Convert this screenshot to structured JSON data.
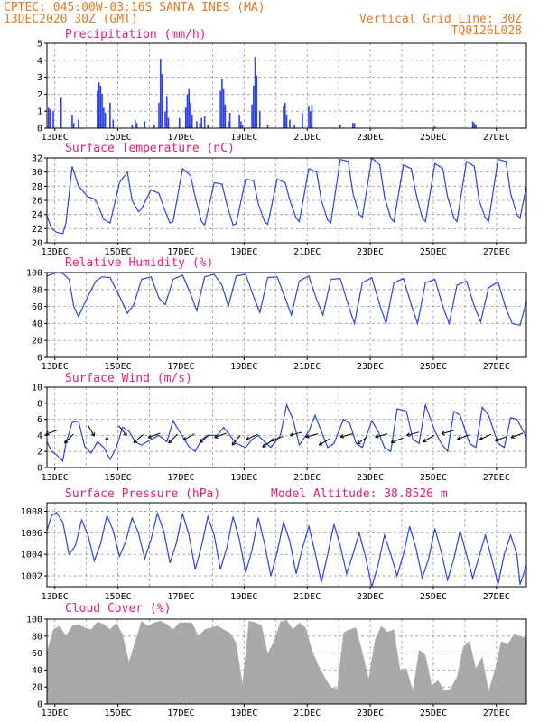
{
  "header": {
    "line1": "CPTEC:   045:00W-03:16S   SANTA INES (MA)",
    "line2": "13DEC2020 30Z (GMT)",
    "right1": "Vertical Grid Line: 30Z",
    "right2": "TQ0126L028"
  },
  "x_ticks": [
    "13DEC",
    "15DEC",
    "17DEC",
    "19DEC",
    "21DEC",
    "23DEC",
    "25DEC",
    "27DEC"
  ],
  "colors": {
    "series": "#2c42e0",
    "header": "#e8781e",
    "title": "#e0207a",
    "cloud": "#a9a9a9"
  },
  "panels": [
    {
      "id": "precip",
      "title": "Precipitation (mm/h)",
      "chart_data": {
        "type": "bar",
        "ylim": [
          0,
          5
        ],
        "yticks": [
          0,
          1,
          2,
          3,
          4,
          5
        ],
        "grid": true,
        "x_start_day": 13,
        "x_end_day": 28.2,
        "x_day": [
          13.05,
          13.1,
          13.2,
          13.45,
          13.8,
          13.85,
          14.0,
          14.6,
          14.65,
          14.7,
          14.75,
          14.8,
          14.85,
          15.0,
          15.1,
          15.7,
          15.8,
          15.85,
          16.1,
          16.4,
          16.55,
          16.6,
          16.65,
          16.75,
          16.8,
          16.85,
          17.2,
          17.4,
          17.45,
          17.5,
          17.55,
          17.6,
          17.75,
          17.85,
          17.9,
          18.0,
          18.1,
          18.5,
          18.55,
          18.6,
          18.65,
          18.75,
          18.8,
          19.1,
          19.15,
          19.2,
          19.5,
          19.55,
          19.6,
          19.65,
          19.75,
          20.0,
          20.5,
          20.55,
          20.6,
          20.7,
          20.85,
          21.1,
          21.3,
          21.35,
          21.4,
          22.3,
          22.7,
          22.75,
          25.3,
          26.5,
          26.55,
          26.6
        ],
        "values": [
          1.2,
          1.1,
          1.0,
          1.8,
          0.8,
          0.3,
          0.5,
          2.2,
          2.7,
          2.5,
          2.0,
          1.2,
          0.9,
          1.5,
          0.5,
          0.2,
          0.5,
          0.3,
          0.4,
          0.2,
          1.5,
          4.1,
          3.2,
          1.0,
          1.9,
          0.6,
          0.6,
          1.2,
          2.0,
          2.3,
          1.5,
          0.8,
          0.4,
          0.3,
          0.6,
          0.7,
          0.2,
          2.2,
          2.9,
          2.3,
          1.4,
          0.4,
          0.9,
          0.8,
          0.4,
          0.2,
          1.4,
          2.5,
          4.2,
          3.1,
          1.0,
          0.2,
          1.3,
          1.5,
          0.8,
          0.5,
          0.2,
          0.9,
          1.3,
          1.0,
          1.4,
          0.2,
          0.3,
          0.3,
          0.1,
          0.4,
          0.3,
          0.2
        ]
      }
    },
    {
      "id": "temp",
      "title": "Surface Temperature (nC)",
      "chart_data": {
        "type": "line",
        "ylim": [
          20,
          32
        ],
        "yticks": [
          20,
          22,
          24,
          26,
          28,
          30,
          32
        ],
        "grid": true,
        "x_start_day": 13,
        "x_end_day": 28.2,
        "x_day": [
          13.0,
          13.15,
          13.3,
          13.5,
          13.6,
          13.8,
          14.0,
          14.3,
          14.5,
          14.6,
          14.8,
          15.0,
          15.3,
          15.55,
          15.7,
          15.9,
          16.0,
          16.3,
          16.55,
          16.7,
          16.9,
          17.0,
          17.3,
          17.55,
          17.7,
          17.9,
          18.0,
          18.3,
          18.55,
          18.7,
          18.9,
          19.0,
          19.3,
          19.55,
          19.7,
          19.9,
          20.0,
          20.3,
          20.55,
          20.7,
          20.9,
          21.0,
          21.3,
          21.55,
          21.7,
          21.9,
          22.0,
          22.3,
          22.55,
          22.7,
          22.9,
          23.0,
          23.3,
          23.55,
          23.7,
          23.9,
          24.0,
          24.3,
          24.55,
          24.7,
          24.9,
          25.0,
          25.3,
          25.55,
          25.7,
          25.9,
          26.0,
          26.3,
          26.55,
          26.7,
          26.9,
          27.0,
          27.3,
          27.55,
          27.7,
          27.9,
          28.0,
          28.2
        ],
        "values": [
          23.8,
          22.0,
          21.5,
          21.3,
          22.8,
          30.8,
          28.0,
          26.5,
          26.2,
          25.5,
          23.3,
          22.8,
          28.5,
          30.0,
          26.0,
          24.4,
          24.8,
          27.5,
          27.0,
          25.0,
          22.8,
          23.0,
          30.5,
          29.5,
          26.5,
          23.0,
          22.5,
          28.5,
          28.3,
          25.5,
          22.5,
          22.7,
          29.0,
          28.8,
          25.5,
          23.0,
          22.6,
          29.0,
          28.5,
          26.0,
          23.5,
          23.0,
          30.5,
          30.0,
          26.0,
          23.2,
          22.8,
          31.8,
          31.5,
          27.0,
          24.0,
          23.6,
          32.0,
          31.0,
          26.5,
          23.5,
          23.0,
          31.0,
          30.5,
          27.0,
          23.5,
          23.0,
          31.2,
          30.5,
          26.5,
          23.5,
          23.0,
          31.5,
          30.8,
          26.0,
          23.5,
          23.0,
          31.8,
          31.5,
          27.0,
          24.0,
          23.5,
          28.0
        ]
      }
    },
    {
      "id": "rh",
      "title": "Relative Humidity (%)",
      "chart_data": {
        "type": "line",
        "ylim": [
          0,
          100
        ],
        "yticks": [
          0,
          20,
          40,
          60,
          80,
          100
        ],
        "grid": true,
        "x_start_day": 13,
        "x_end_day": 28.2,
        "x_day": [
          13.0,
          13.3,
          13.5,
          13.7,
          13.85,
          14.0,
          14.3,
          14.55,
          14.75,
          15.0,
          15.3,
          15.55,
          15.75,
          16.0,
          16.3,
          16.55,
          16.75,
          17.0,
          17.3,
          17.55,
          17.75,
          18.0,
          18.3,
          18.55,
          18.75,
          19.0,
          19.3,
          19.55,
          19.75,
          20.0,
          20.3,
          20.55,
          20.75,
          21.0,
          21.3,
          21.55,
          21.75,
          22.0,
          22.3,
          22.55,
          22.75,
          23.0,
          23.3,
          23.55,
          23.75,
          24.0,
          24.3,
          24.55,
          24.75,
          25.0,
          25.3,
          25.55,
          25.75,
          26.0,
          26.3,
          26.55,
          26.75,
          27.0,
          27.3,
          27.55,
          27.75,
          28.0,
          28.2
        ],
        "values": [
          96,
          100,
          99,
          92,
          60,
          48,
          72,
          90,
          95,
          94,
          72,
          52,
          62,
          92,
          95,
          70,
          62,
          92,
          97,
          75,
          55,
          95,
          98,
          85,
          60,
          96,
          98,
          72,
          53,
          94,
          95,
          70,
          50,
          90,
          96,
          68,
          50,
          92,
          93,
          62,
          40,
          88,
          94,
          62,
          40,
          88,
          93,
          62,
          40,
          88,
          92,
          60,
          40,
          85,
          90,
          60,
          42,
          82,
          89,
          58,
          40,
          38,
          66
        ]
      }
    },
    {
      "id": "wind",
      "title": "Surface Wind (m/s)",
      "chart_data": {
        "type": "line",
        "ylim": [
          0,
          10
        ],
        "yticks": [
          0,
          2,
          4,
          6,
          8,
          10
        ],
        "grid": true,
        "x_start_day": 13,
        "x_end_day": 28.2,
        "x_day": [
          13.0,
          13.15,
          13.3,
          13.5,
          13.6,
          13.8,
          14.0,
          14.2,
          14.4,
          14.6,
          14.8,
          15.0,
          15.2,
          15.4,
          15.6,
          15.8,
          16.0,
          16.3,
          16.55,
          16.8,
          17.0,
          17.2,
          17.5,
          17.7,
          17.9,
          18.1,
          18.4,
          18.6,
          18.8,
          19.0,
          19.3,
          19.5,
          19.7,
          19.9,
          20.1,
          20.4,
          20.6,
          20.8,
          21.0,
          21.3,
          21.5,
          21.7,
          21.9,
          22.1,
          22.4,
          22.6,
          22.8,
          23.0,
          23.3,
          23.5,
          23.7,
          23.9,
          24.1,
          24.4,
          24.6,
          24.8,
          25.0,
          25.3,
          25.5,
          25.7,
          25.9,
          26.1,
          26.4,
          26.6,
          26.8,
          27.0,
          27.3,
          27.5,
          27.7,
          27.9,
          28.2
        ],
        "values": [
          3.2,
          2.0,
          1.6,
          0.8,
          3.0,
          5.6,
          5.8,
          2.6,
          1.8,
          3.2,
          2.5,
          1.0,
          2.5,
          5.0,
          4.5,
          3.2,
          2.8,
          3.5,
          4.0,
          3.2,
          5.8,
          4.5,
          2.6,
          2.0,
          3.5,
          4.0,
          4.0,
          5.0,
          4.0,
          3.0,
          2.5,
          3.5,
          4.0,
          3.2,
          2.5,
          4.0,
          7.8,
          6.0,
          2.8,
          4.5,
          6.5,
          4.5,
          2.5,
          3.0,
          6.0,
          5.5,
          3.0,
          2.5,
          5.8,
          4.5,
          2.5,
          2.0,
          7.3,
          7.0,
          3.5,
          3.0,
          7.8,
          4.5,
          3.0,
          2.0,
          7.0,
          6.5,
          3.0,
          2.5,
          7.5,
          6.5,
          3.0,
          2.5,
          6.2,
          6.0,
          3.8
        ],
        "arrows": [
          {
            "day": 13.15,
            "speed": 4.4,
            "dir_deg": 200
          },
          {
            "day": 13.7,
            "speed": 3.6,
            "dir_deg": 225
          },
          {
            "day": 14.4,
            "speed": 4.6,
            "dir_deg": 300
          },
          {
            "day": 14.9,
            "speed": 3.0,
            "dir_deg": 90
          },
          {
            "day": 15.4,
            "speed": 4.6,
            "dir_deg": 310
          },
          {
            "day": 15.9,
            "speed": 3.6,
            "dir_deg": 220
          },
          {
            "day": 16.4,
            "speed": 4.0,
            "dir_deg": 200
          },
          {
            "day": 17.0,
            "speed": 3.6,
            "dir_deg": 225
          },
          {
            "day": 17.5,
            "speed": 3.8,
            "dir_deg": 210
          },
          {
            "day": 18.0,
            "speed": 3.6,
            "dir_deg": 220
          },
          {
            "day": 18.5,
            "speed": 4.0,
            "dir_deg": 200
          },
          {
            "day": 19.0,
            "speed": 3.4,
            "dir_deg": 230
          },
          {
            "day": 19.5,
            "speed": 3.8,
            "dir_deg": 205
          },
          {
            "day": 20.0,
            "speed": 3.0,
            "dir_deg": 215
          },
          {
            "day": 20.3,
            "speed": 3.6,
            "dir_deg": 200
          },
          {
            "day": 20.9,
            "speed": 4.2,
            "dir_deg": 195
          },
          {
            "day": 21.4,
            "speed": 4.0,
            "dir_deg": 195
          },
          {
            "day": 21.8,
            "speed": 3.2,
            "dir_deg": 210
          },
          {
            "day": 22.5,
            "speed": 4.0,
            "dir_deg": 195
          },
          {
            "day": 23.0,
            "speed": 3.4,
            "dir_deg": 215
          },
          {
            "day": 23.6,
            "speed": 4.0,
            "dir_deg": 195
          },
          {
            "day": 24.1,
            "speed": 3.4,
            "dir_deg": 200
          },
          {
            "day": 24.6,
            "speed": 4.2,
            "dir_deg": 195
          },
          {
            "day": 25.1,
            "speed": 3.6,
            "dir_deg": 210
          },
          {
            "day": 25.7,
            "speed": 4.4,
            "dir_deg": 195
          },
          {
            "day": 26.2,
            "speed": 3.8,
            "dir_deg": 200
          },
          {
            "day": 26.9,
            "speed": 3.8,
            "dir_deg": 205
          },
          {
            "day": 27.4,
            "speed": 3.6,
            "dir_deg": 200
          },
          {
            "day": 27.9,
            "speed": 4.0,
            "dir_deg": 200
          }
        ]
      }
    },
    {
      "id": "pressure",
      "title": "Surface Pressure (hPa)",
      "extra": "Model Altitude: 38.8526 m",
      "chart_data": {
        "type": "line",
        "ylim": [
          1001,
          1008.8
        ],
        "yticks": [
          1002,
          1004,
          1006,
          1008
        ],
        "grid": true,
        "x_start_day": 13,
        "x_end_day": 28.2,
        "x_day": [
          13.0,
          13.15,
          13.3,
          13.5,
          13.7,
          13.9,
          14.1,
          14.3,
          14.5,
          14.7,
          14.9,
          15.1,
          15.3,
          15.5,
          15.7,
          15.9,
          16.1,
          16.3,
          16.5,
          16.7,
          16.9,
          17.1,
          17.3,
          17.5,
          17.7,
          17.9,
          18.1,
          18.3,
          18.5,
          18.7,
          18.9,
          19.1,
          19.3,
          19.5,
          19.7,
          19.9,
          20.1,
          20.3,
          20.5,
          20.7,
          20.9,
          21.1,
          21.3,
          21.5,
          21.7,
          21.9,
          22.1,
          22.3,
          22.5,
          22.7,
          22.9,
          23.1,
          23.3,
          23.5,
          23.7,
          23.9,
          24.1,
          24.3,
          24.5,
          24.7,
          24.9,
          25.1,
          25.3,
          25.5,
          25.7,
          25.9,
          26.1,
          26.3,
          26.5,
          26.7,
          26.9,
          27.1,
          27.3,
          27.5,
          27.7,
          27.9,
          28.0,
          28.2
        ],
        "values": [
          1006.2,
          1007.6,
          1007.9,
          1007.0,
          1004.0,
          1004.8,
          1007.2,
          1005.8,
          1003.4,
          1005.0,
          1007.6,
          1006.2,
          1003.8,
          1005.2,
          1007.4,
          1006.0,
          1003.6,
          1005.4,
          1007.8,
          1006.2,
          1003.2,
          1005.0,
          1007.8,
          1005.8,
          1002.6,
          1004.8,
          1007.5,
          1005.8,
          1002.6,
          1004.6,
          1007.5,
          1005.4,
          1002.3,
          1004.4,
          1007.4,
          1005.0,
          1002.0,
          1004.2,
          1007.0,
          1005.2,
          1002.2,
          1004.6,
          1006.6,
          1004.2,
          1001.4,
          1004.0,
          1006.8,
          1004.8,
          1002.2,
          1004.0,
          1006.0,
          1003.8,
          1001.0,
          1003.0,
          1005.8,
          1004.0,
          1002.0,
          1004.0,
          1006.6,
          1004.6,
          1001.8,
          1003.6,
          1006.4,
          1004.2,
          1001.6,
          1003.6,
          1006.2,
          1004.0,
          1001.8,
          1003.8,
          1005.8,
          1003.6,
          1001.2,
          1004.0,
          1005.8,
          1004.0,
          1001.2,
          1003.0
        ]
      }
    },
    {
      "id": "cloud",
      "title": "Cloud Cover (%)",
      "chart_data": {
        "type": "area",
        "ylim": [
          0,
          100
        ],
        "yticks": [
          0,
          20,
          40,
          60,
          80,
          100
        ],
        "grid": true,
        "x_start_day": 13,
        "x_end_day": 28.2,
        "x_day": [
          13.0,
          13.2,
          13.4,
          13.6,
          13.8,
          14.0,
          14.2,
          14.4,
          14.6,
          14.8,
          15.0,
          15.2,
          15.4,
          15.6,
          15.8,
          16.0,
          16.2,
          16.4,
          16.6,
          16.8,
          17.0,
          17.2,
          17.4,
          17.6,
          17.8,
          18.0,
          18.2,
          18.4,
          18.6,
          18.8,
          19.0,
          19.2,
          19.4,
          19.6,
          19.8,
          20.0,
          20.2,
          20.4,
          20.6,
          20.8,
          21.0,
          21.2,
          21.4,
          21.6,
          21.8,
          22.0,
          22.2,
          22.4,
          22.6,
          22.8,
          23.0,
          23.2,
          23.4,
          23.6,
          23.8,
          24.0,
          24.2,
          24.4,
          24.6,
          24.8,
          25.0,
          25.2,
          25.4,
          25.6,
          25.8,
          26.0,
          26.2,
          26.4,
          26.6,
          26.8,
          27.0,
          27.2,
          27.4,
          27.6,
          27.8,
          28.0,
          28.2
        ],
        "values": [
          62,
          88,
          92,
          80,
          92,
          94,
          90,
          88,
          97,
          94,
          88,
          96,
          82,
          50,
          74,
          98,
          92,
          96,
          98,
          94,
          88,
          96,
          96,
          96,
          80,
          88,
          90,
          92,
          88,
          84,
          72,
          24,
          98,
          96,
          93,
          60,
          74,
          97,
          99,
          88,
          96,
          90,
          64,
          46,
          32,
          20,
          18,
          84,
          88,
          90,
          62,
          30,
          76,
          92,
          85,
          88,
          40,
          42,
          16,
          64,
          58,
          22,
          28,
          16,
          18,
          32,
          68,
          74,
          42,
          56,
          16,
          40,
          74,
          70,
          82,
          80,
          78
        ]
      }
    }
  ]
}
